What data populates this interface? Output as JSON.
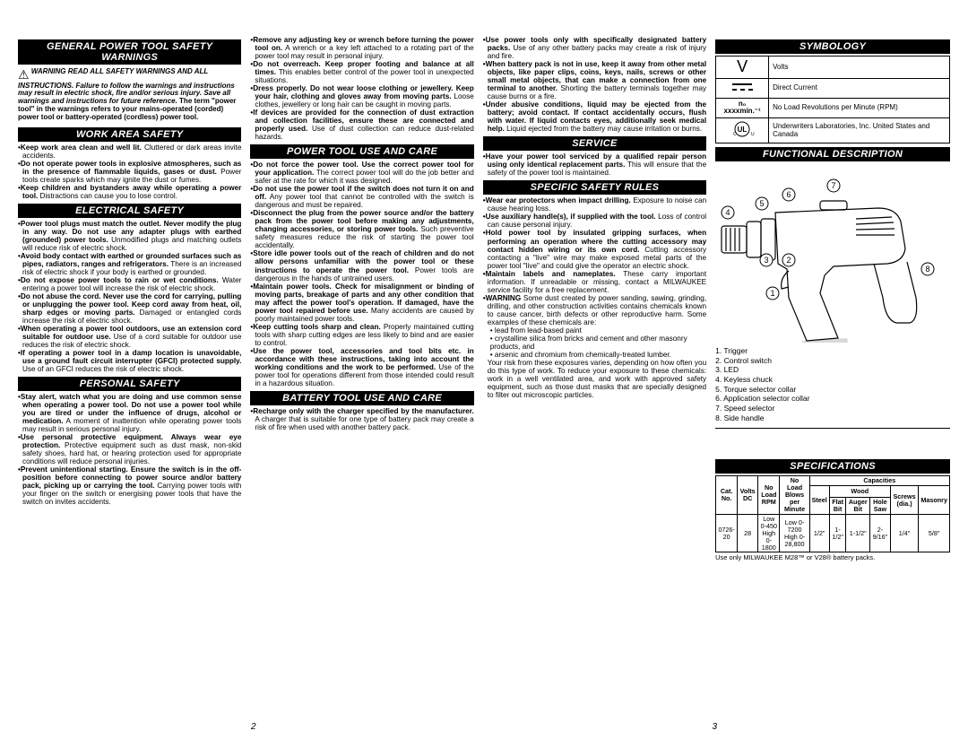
{
  "headings": {
    "general": "GENERAL POWER TOOL SAFETY WARNINGS",
    "work": "WORK AREA SAFETY",
    "electrical": "ELECTRICAL SAFETY",
    "personal": "PERSONAL SAFETY",
    "powertool": "POWER TOOL USE AND CARE",
    "battery": "BATTERY TOOL USE AND CARE",
    "service": "SERVICE",
    "specific": "SPECIFIC SAFETY RULES",
    "symbology": "SYMBOLOGY",
    "funcdesc": "FUNCTIONAL DESCRIPTION",
    "specs": "SPECIFICATIONS"
  },
  "warning": {
    "label": "WARNING",
    "text1": "READ ALL SAFETY WARNINGS AND ALL INSTRUCTIONS. Failure to follow the warnings and instructions may result in electric shock, fire and/or serious injury.",
    "text2": "Save all warnings and instructions for future reference.",
    "text3": "The term \"power tool\" in the warnings refers to your mains-operated (corded) power tool or battery-operated (cordless) power tool."
  },
  "work_bullets": [
    {
      "b": "Keep work area clean and well lit.",
      "t": " Cluttered or dark areas invite accidents."
    },
    {
      "b": "Do not operate power tools in explosive atmospheres, such as in the presence of flammable liquids, gases or dust.",
      "t": " Power tools create sparks which may ignite the dust or fumes."
    },
    {
      "b": "Keep children and bystanders away while operating a power tool.",
      "t": " Distractions can cause you to lose control."
    }
  ],
  "electrical_bullets": [
    {
      "b": "Power tool plugs must match the outlet. Never modify the plug in any way. Do not use any adapter plugs with earthed (grounded) power tools.",
      "t": " Unmodified plugs and matching outlets will reduce risk of electric shock."
    },
    {
      "b": "Avoid body contact with earthed or grounded surfaces such as pipes, radiators, ranges and refrigerators.",
      "t": " There is an increased risk of electric shock if your body is earthed or grounded."
    },
    {
      "b": "Do not expose power tools to rain or wet conditions.",
      "t": " Water entering a power tool will increase the risk of electric shock."
    },
    {
      "b": "Do not abuse the cord. Never use the cord for carrying, pulling or unplugging the power tool. Keep cord away from heat, oil, sharp edges or moving parts.",
      "t": " Damaged or entangled cords increase the risk of electric shock."
    },
    {
      "b": "When operating a power tool outdoors, use an extension cord suitable for outdoor use.",
      "t": " Use of a cord suitable for outdoor use reduces the risk of electric shock."
    },
    {
      "b": "If operating a power tool in a damp location is unavoidable, use a ground fault circuit interrupter (GFCI) protected supply.",
      "t": " Use of an GFCI reduces the risk of electric shock."
    }
  ],
  "personal_bullets": [
    {
      "b": "Stay alert, watch what you are doing and use common sense when operating a power tool. Do not use a power tool while you are tired or under the influence of drugs, alcohol or medication.",
      "t": " A moment of inattention while operating power tools may result in serious personal injury."
    },
    {
      "b": "Use personal protective equipment. Always wear eye protection.",
      "t": " Protective equipment such as dust mask, non-skid safety shoes, hard hat, or hearing protection used for appropriate conditions will reduce personal injuries."
    },
    {
      "b": "Prevent unintentional starting. Ensure the switch is in the off-position before connecting to power source and/or battery pack, picking up or carrying the tool.",
      "t": " Carrying power tools with your finger on the switch or energising power tools that have the switch on invites accidents."
    }
  ],
  "personal_bullets2": [
    {
      "b": "Remove any adjusting key or wrench before turning the power tool on.",
      "t": " A wrench or a key left attached to a rotating part of the power tool may result in personal injury."
    },
    {
      "b": "Do not overreach. Keep proper footing and balance at all times.",
      "t": " This enables better control of the power tool in unexpected situations."
    },
    {
      "b": "Dress properly. Do not wear loose clothing or jewellery. Keep your hair, clothing and gloves away from moving parts.",
      "t": " Loose clothes, jewellery or long hair can be caught in moving parts."
    },
    {
      "b": "If devices are provided for the connection of dust extraction and collection facilities, ensure these are connected and properly used.",
      "t": " Use of dust collection can reduce dust-related hazards."
    }
  ],
  "powertool_bullets": [
    {
      "b": "Do not force the power tool. Use the correct power tool for your application.",
      "t": " The correct power tool will do the job better and safer at the rate for which it was designed."
    },
    {
      "b": "Do not use the power tool if the switch does not turn it on and off.",
      "t": " Any power tool that cannot be controlled with the switch is dangerous and must be repaired."
    },
    {
      "b": "Disconnect the plug from the power source and/or the battery pack from the power tool before making any adjustments, changing accessories, or storing power tools.",
      "t": " Such preventive safety measures reduce the risk of starting the power tool accidentally."
    },
    {
      "b": "Store idle power tools out of the reach of children and do not allow persons unfamiliar with the power tool or these instructions to operate the power tool.",
      "t": " Power tools are dangerous in the hands of untrained users."
    },
    {
      "b": "Maintain power tools. Check for misalignment or binding of moving parts, breakage of parts and any other condition that may affect the power tool's operation. If damaged, have the power tool repaired before use.",
      "t": " Many accidents are caused by poorly maintained power tools."
    },
    {
      "b": "Keep cutting tools sharp and clean.",
      "t": " Properly maintained cutting tools with sharp cutting edges are less likely to bind and are easier to control."
    },
    {
      "b": "Use the power tool, accessories and tool bits etc. in accordance with these instructions, taking into account the working conditions and the work to be performed.",
      "t": " Use of the power tool for operations different from those intended could result in a hazardous situation."
    }
  ],
  "battery_bullets": [
    {
      "b": "Recharge only with the charger specified by the manufacturer.",
      "t": " A charger that is suitable for one type of battery pack may create a risk of fire when used with another battery pack."
    }
  ],
  "battery_bullets2": [
    {
      "b": "Use power tools only with specifically designated battery packs.",
      "t": " Use of any other battery packs may create a risk of injury and fire."
    },
    {
      "b": "When battery pack is not in use, keep it away from other metal objects, like paper clips, coins, keys, nails, screws or other small metal objects, that can make a connection from one terminal to another.",
      "t": " Shorting the battery terminals together may cause burns or a fire."
    },
    {
      "b": "Under abusive conditions, liquid may be ejected from the battery; avoid contact. If contact accidentally occurs, flush with water. If liquid contacts eyes, additionally seek medical help.",
      "t": " Liquid ejected from the battery may cause irritation or burns."
    }
  ],
  "service_bullets": [
    {
      "b": "Have your power tool serviced by a qualified repair person using only identical replacement parts.",
      "t": " This will ensure that the safety of the power tool is maintained."
    }
  ],
  "specific_bullets": [
    {
      "b": "Wear ear protectors when impact drilling.",
      "t": " Exposure to noise can cause hearing loss."
    },
    {
      "b": "Use auxiliary handle(s), if supplied with the tool.",
      "t": " Loss of control can cause personal injury."
    },
    {
      "b": "Hold power tool by insulated gripping surfaces, when performing an operation where the cutting accessory may contact hidden wiring or its own cord.",
      "t": " Cutting accessory contacting a \"live\" wire may make exposed metal parts of the power tool \"live\" and could give the operator an electric shock."
    },
    {
      "b": "Maintain labels and nameplates.",
      "t": " These carry important information. If unreadable or missing, contact a MILWAUKEE service facility for a free replacement."
    },
    {
      "b": "WARNING",
      "t": " Some dust created by power sanding, sawing, grinding, drilling, and other construction activities contains chemicals known to cause cancer, birth defects or other reproductive harm. Some examples of these chemicals are:"
    }
  ],
  "chem_sub": [
    "lead from lead-based paint",
    "crystalline silica from bricks and cement and other masonry products, and",
    "arsenic and chromium from chemically-treated lumber."
  ],
  "risk_text": "Your risk from these exposures varies, depending on how often you do this type of work. To reduce your exposure to these chemicals: work in a well ventilated area, and work with approved safety equipment, such as those dust masks that are specially designed to filter out microscopic particles.",
  "symbology": [
    {
      "sym": "V",
      "desc": "Volts",
      "style": "font-size:18px;font-family:Arial;font-weight:normal;"
    },
    {
      "sym": "⎓",
      "desc": "Direct Current",
      "style": "font-size:14px;letter-spacing:-2px;"
    },
    {
      "sym": "n₀ xxxxmin.⁻¹",
      "desc": "No Load Revolutions per Minute (RPM)",
      "style": "font-size:8px;font-weight:bold;"
    },
    {
      "sym": "UL",
      "desc": "Underwriters Laboratories, Inc. United States and Canada",
      "style": "font-size:9px;"
    }
  ],
  "parts": [
    "1. Trigger",
    "2. Control switch",
    "3. LED",
    "4. Keyless chuck",
    "5. Torque selector collar",
    "6. Application selector collar",
    "7. Speed selector",
    "8. Side handle"
  ],
  "callouts": [
    "1",
    "2",
    "3",
    "4",
    "5",
    "6",
    "7",
    "8"
  ],
  "spec_headers": {
    "cat": "Cat. No.",
    "volts": "Volts DC",
    "rpm": "No Load RPM",
    "bpm": "No Load Blows per Minute",
    "cap": "Capacities",
    "wood": "Wood",
    "steel": "Steel",
    "flat": "Flat Bit",
    "auger": "Auger Bit",
    "hole": "Hole Saw",
    "screw": "Screws (dia.)",
    "mason": "Masonry"
  },
  "spec_row": {
    "cat": "0726-20",
    "volts": "28",
    "rpm1": "Low 0-450",
    "rpm2": "High 0-1800",
    "bpm1": "Low 0-7200",
    "bpm2": "High 0-28,800",
    "steel": "1/2\"",
    "flat": "1-1/2\"",
    "auger": "1-1/2\"",
    "hole": "2-9/16\"",
    "screw": "1/4\"",
    "mason": "5/8\""
  },
  "spec_note": "Use only MILWAUKEE M28™ or V28® battery packs.",
  "page_left": "2",
  "page_right": "3"
}
